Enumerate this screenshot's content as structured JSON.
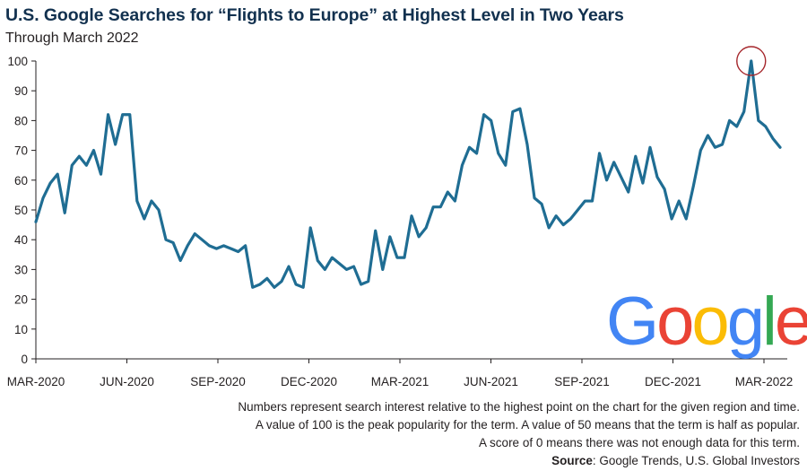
{
  "title": "U.S. Google Searches for “Flights to Europe” at Highest Level in Two Years",
  "subtitle": "Through March 2022",
  "notes": [
    "Numbers represent search interest relative to the highest point on the chart for the given region and time.",
    "A value of 100 is the peak popularity for the term. A value of 50 means that the term is half as popular.",
    "A score of 0 means there was not enough data for this term."
  ],
  "source": {
    "label": "Source",
    "text": ": Google Trends, U.S. Global Investors"
  },
  "logo": {
    "text": "Google",
    "colors": [
      "#4285F4",
      "#EA4335",
      "#FBBC05",
      "#4285F4",
      "#34A853",
      "#EA4335"
    ]
  },
  "colors": {
    "line": "#1f6d93",
    "highlight": "#a5262b",
    "axis": "#231f20"
  },
  "chart_data": {
    "type": "line",
    "title": "U.S. Google Searches for “Flights to Europe” at Highest Level in Two Years",
    "subtitle": "Through March 2022",
    "xlabel": "",
    "ylabel": "",
    "ylim": [
      0,
      100
    ],
    "yticks": [
      0,
      10,
      20,
      30,
      40,
      50,
      60,
      70,
      80,
      90,
      100
    ],
    "x_tick_labels": [
      "MAR-2020",
      "JUN-2020",
      "SEP-2020",
      "DEC-2020",
      "MAR-2021",
      "JUN-2021",
      "SEP-2021",
      "DEC-2021",
      "MAR-2022"
    ],
    "grid": false,
    "frequency": "weekly",
    "series": [
      {
        "values": [
          46,
          54,
          59,
          62,
          49,
          65,
          68,
          65,
          70,
          62,
          82,
          72,
          82,
          82,
          53,
          47,
          53,
          50,
          40,
          39,
          33,
          38,
          42,
          40,
          38,
          37,
          38,
          37,
          36,
          38,
          24,
          25,
          27,
          24,
          26,
          31,
          25,
          24,
          44,
          33,
          30,
          34,
          32,
          30,
          31,
          25,
          26,
          43,
          30,
          41,
          34,
          34,
          48,
          41,
          44,
          51,
          51,
          56,
          53,
          65,
          71,
          69,
          82,
          80,
          69,
          65,
          83,
          84,
          72,
          54,
          52,
          44,
          48,
          45,
          47,
          50,
          53,
          53,
          69,
          60,
          66,
          61,
          56,
          68,
          59,
          71,
          61,
          57,
          47,
          53,
          47,
          58,
          70,
          75,
          71,
          72,
          80,
          78,
          83,
          100,
          80,
          78,
          74,
          71
        ]
      }
    ],
    "annotations": [
      {
        "type": "circle",
        "value": 100,
        "label": "peak"
      }
    ]
  }
}
